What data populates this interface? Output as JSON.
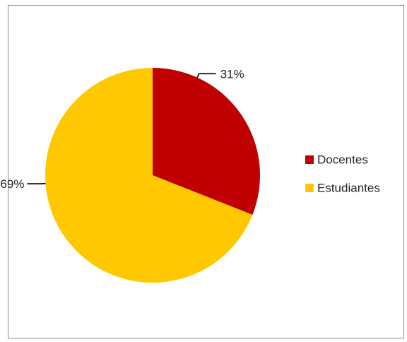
{
  "chart_data": {
    "type": "pie",
    "categories": [
      "Docentes",
      "Estudiantes"
    ],
    "values": [
      31,
      69
    ],
    "data_labels": [
      "31%",
      "69%"
    ],
    "colors": [
      "#c00000",
      "#ffc800"
    ],
    "legend": [
      "Docentes",
      "Estudiantes"
    ],
    "legend_position": "right",
    "start_angle_deg": 0,
    "direction": "clockwise"
  }
}
